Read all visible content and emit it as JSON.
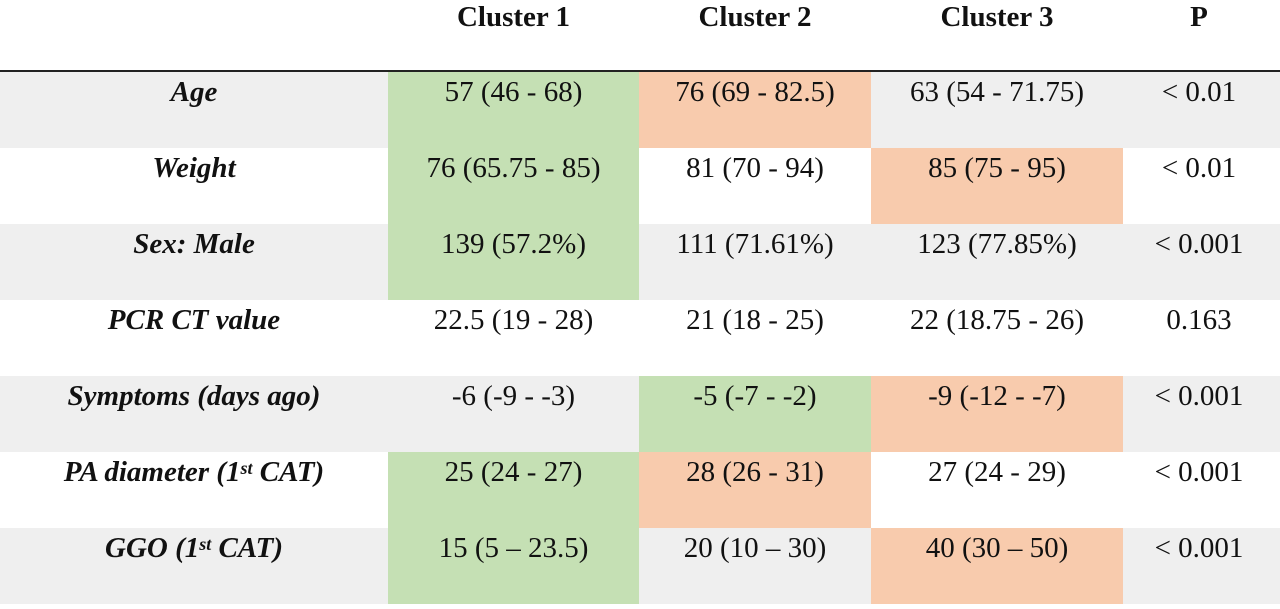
{
  "colors": {
    "green": "#c5e0b4",
    "orange": "#f8cbad",
    "stripe": "#efefef"
  },
  "header": {
    "cluster1": "Cluster 1",
    "cluster2": "Cluster 2",
    "cluster3": "Cluster 3",
    "p": "P"
  },
  "rows": [
    {
      "label": "Age",
      "c1": "57 (46 - 68)",
      "c2": "76 (69 - 82.5)",
      "c3": "63 (54 - 71.75)",
      "p": "< 0.01",
      "hl": [
        "green",
        "orange",
        ""
      ]
    },
    {
      "label": "Weight",
      "c1": "76 (65.75 - 85)",
      "c2": "81 (70 - 94)",
      "c3": "85 (75 - 95)",
      "p": "< 0.01",
      "hl": [
        "green",
        "",
        "orange"
      ]
    },
    {
      "label": "Sex: Male",
      "c1": "139 (57.2%)",
      "c2": "111 (71.61%)",
      "c3": "123 (77.85%)",
      "p": "< 0.001",
      "hl": [
        "green",
        "",
        ""
      ]
    },
    {
      "label": "PCR CT value",
      "c1": "22.5 (19 - 28)",
      "c2": "21 (18 - 25)",
      "c3": "22 (18.75 - 26)",
      "p": "0.163",
      "hl": [
        "",
        "",
        ""
      ]
    },
    {
      "label": "Symptoms (days ago)",
      "c1": "-6 (-9 - -3)",
      "c2": "-5 (-7 - -2)",
      "c3": "-9 (-12 - -7)",
      "p": "< 0.001",
      "hl": [
        "",
        "green",
        "orange"
      ]
    },
    {
      "label_pre": "PA diameter (1",
      "label_sup": "st",
      "label_post": " CAT)",
      "c1": "25 (24 - 27)",
      "c2": "28 (26 - 31)",
      "c3": "27 (24 - 29)",
      "p": "< 0.001",
      "hl": [
        "green",
        "orange",
        ""
      ]
    },
    {
      "label_pre": "GGO (1",
      "label_sup": "st",
      "label_post": " CAT)",
      "c1": "15 (5 – 23.5)",
      "c2": "20 (10 – 30)",
      "c3": "40 (30 – 50)",
      "p": "< 0.001",
      "hl": [
        "green",
        "",
        "orange"
      ]
    }
  ]
}
